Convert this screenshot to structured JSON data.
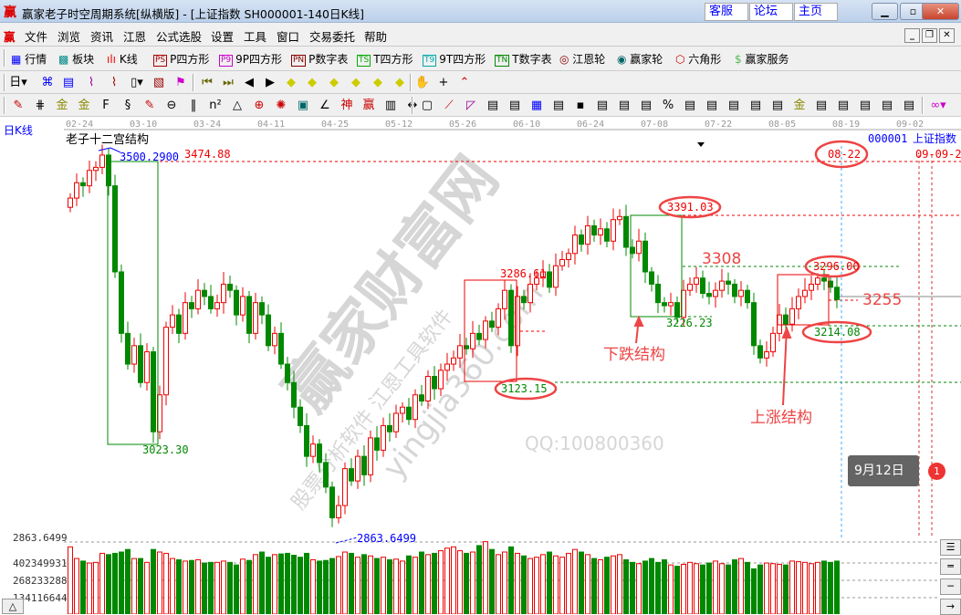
{
  "window": {
    "title": "赢家老子时空周期系统[纵横版] - [上证指数  SH000001-140日K线]",
    "logo": "赢",
    "links": [
      "客服",
      "论坛",
      "主页"
    ],
    "controls": [
      "minimize",
      "maximize",
      "close"
    ]
  },
  "menu": {
    "logo": "赢",
    "items": [
      "文件",
      "浏览",
      "资讯",
      "江恩",
      "公式选股",
      "设置",
      "工具",
      "窗口",
      "交易委托",
      "帮助"
    ]
  },
  "toolbar1": [
    {
      "label": "行情",
      "icon": "grid-table-icon"
    },
    {
      "label": "板块",
      "icon": "blocks-icon"
    },
    {
      "label": "K线",
      "icon": "candles-icon"
    },
    {
      "label": "P四方形",
      "badge": "PS"
    },
    {
      "label": "9P四方形",
      "badge": "P9"
    },
    {
      "label": "P数字表",
      "badge": "PN"
    },
    {
      "label": "T四方形",
      "badge": "TS"
    },
    {
      "label": "9T四方形",
      "badge": "T9"
    },
    {
      "label": "T数字表",
      "badge": "TN"
    },
    {
      "label": "江恩轮",
      "icon": "gann-wheel-icon"
    },
    {
      "label": "赢家轮",
      "icon": "big-wheel-icon"
    },
    {
      "label": "六角形",
      "icon": "hexagon-icon"
    },
    {
      "label": "赢家服务",
      "icon": "dollar-icon"
    }
  ],
  "chart": {
    "period_label": "日K线",
    "structure_title": "老子十二宫结构",
    "code": "000001",
    "name": "上证指数",
    "date_ticks": [
      "02-24",
      "03-10",
      "03-24",
      "04-11",
      "04-25",
      "05-12",
      "05-26",
      "06-10",
      "06-24",
      "07-08",
      "07-22",
      "08-05",
      "08-19",
      "09-02"
    ],
    "high_label": "3500.2900",
    "high_label2": "3474.88",
    "low_label": "2863.6499",
    "low_axis": "2863.6499",
    "box1_low": "3023.30",
    "box2_high": "3286.61",
    "box2_low": "3123.15",
    "box3_high": "3391.03",
    "box3_low": "3226.23",
    "level_3308": "3308",
    "box4_high": "3296.00",
    "box4_low": "3214.08",
    "level_3255": "3255",
    "down_structure": "下跌结构",
    "up_structure": "上涨结构",
    "date_circle": "08-22",
    "right_date": "09-09-21",
    "volume_ticks": [
      "402349931",
      "268233288",
      "134116644"
    ],
    "watermark": [
      "赢家财富网",
      "股票分析软件 江恩工具软件",
      "yingjia360.com",
      "QQ:100800360"
    ]
  },
  "tooltip": {
    "text": "9月12日",
    "badge": "1"
  },
  "chart_data": {
    "type": "candlestick",
    "x_ticks": [
      "02-24",
      "03-10",
      "03-24",
      "04-11",
      "04-25",
      "05-12",
      "05-26",
      "06-10",
      "06-24",
      "07-08",
      "07-22",
      "08-05",
      "08-19",
      "09-02"
    ],
    "ylim": [
      2863.6499,
      3500.29
    ],
    "close": [
      3420,
      3445,
      3440,
      3465,
      3470,
      3490,
      3440,
      3300,
      3200,
      3150,
      3180,
      3120,
      3170,
      3040,
      3100,
      3210,
      3230,
      3200,
      3250,
      3240,
      3270,
      3260,
      3240,
      3250,
      3280,
      3270,
      3230,
      3260,
      3200,
      3250,
      3230,
      3180,
      3200,
      3150,
      3120,
      3080,
      3050,
      3000,
      3020,
      2990,
      2950,
      2900,
      2920,
      2980,
      2960,
      3000,
      2970,
      3030,
      3010,
      3050,
      3040,
      3070,
      3080,
      3060,
      3100,
      3090,
      3130,
      3110,
      3140,
      3150,
      3160,
      3180,
      3175,
      3200,
      3190,
      3220,
      3210,
      3240,
      3270,
      3180,
      3260,
      3250,
      3280,
      3290,
      3300,
      3275,
      3310,
      3320,
      3330,
      3360,
      3345,
      3375,
      3360,
      3370,
      3350,
      3385,
      3390,
      3340,
      3330,
      3350,
      3300,
      3280,
      3250,
      3245,
      3250,
      3226,
      3270,
      3280,
      3290,
      3265,
      3260,
      3270,
      3285,
      3280,
      3260,
      3270,
      3250,
      3180,
      3160,
      3170,
      3200,
      3230,
      3215,
      3240,
      3260,
      3270,
      3280,
      3290,
      3285,
      3275,
      3255
    ],
    "volume": [
      520,
      430,
      410,
      395,
      400,
      470,
      460,
      470,
      480,
      500,
      430,
      430,
      400,
      500,
      480,
      470,
      430,
      420,
      410,
      415,
      420,
      395,
      400,
      400,
      410,
      400,
      380,
      425,
      415,
      460,
      480,
      440,
      460,
      465,
      470,
      455,
      440,
      470,
      420,
      410,
      415,
      430,
      445,
      480,
      470,
      440,
      460,
      450,
      430,
      440,
      420,
      425,
      410,
      450,
      440,
      480,
      460,
      470,
      490,
      510,
      520,
      490,
      470,
      480,
      530,
      560,
      500,
      460,
      480,
      520,
      470,
      450,
      430,
      440,
      460,
      480,
      450,
      440,
      470,
      500,
      480,
      460,
      430,
      420,
      440,
      450,
      460,
      420,
      400,
      390,
      410,
      430,
      400,
      420,
      380,
      370,
      385,
      400,
      390,
      380,
      395,
      410,
      390,
      380,
      420,
      430,
      400,
      350,
      380,
      395,
      390,
      385,
      380,
      410,
      405,
      400,
      390,
      400,
      410,
      400,
      410
    ]
  }
}
